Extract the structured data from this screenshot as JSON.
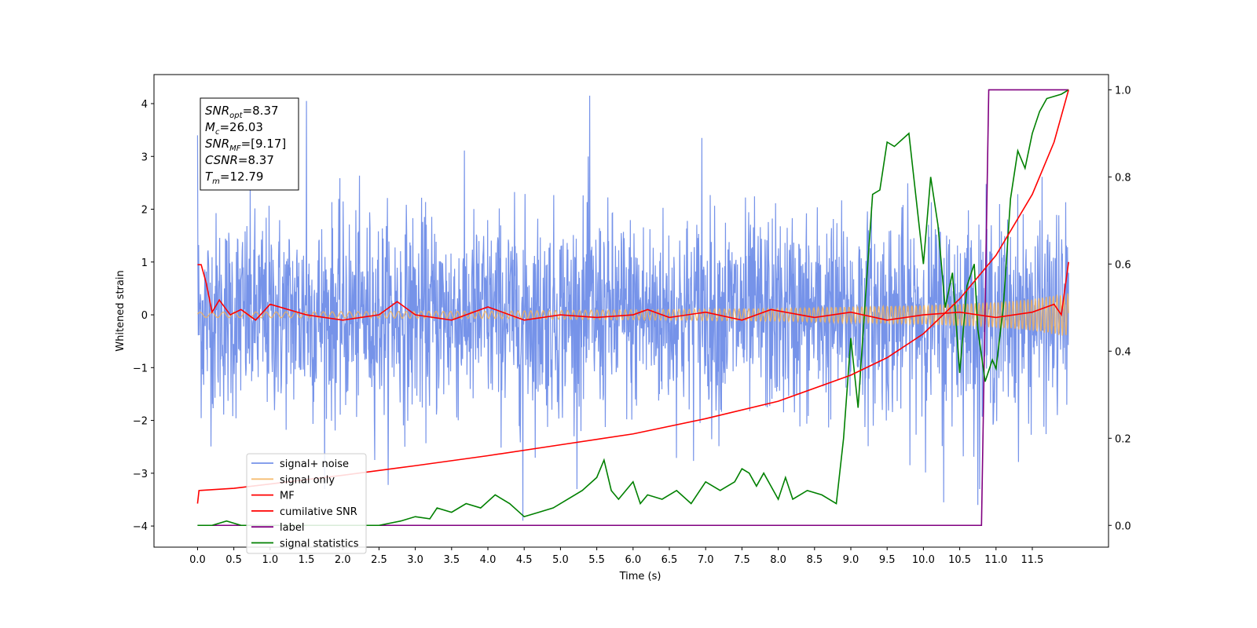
{
  "chart_data": {
    "type": "line",
    "title": "",
    "xlabel": "Time (s)",
    "ylabel": "Whitened strain",
    "xlim": [
      -0.6,
      12.55
    ],
    "ylim": [
      -4.4,
      4.55
    ],
    "y2lim": [
      -0.05,
      1.035
    ],
    "xticks": [
      "0.0",
      "0.5",
      "1.0",
      "1.5",
      "2.0",
      "2.5",
      "3.0",
      "3.5",
      "4.0",
      "4.5",
      "5.0",
      "5.5",
      "6.0",
      "6.5",
      "7.0",
      "7.5",
      "8.0",
      "8.5",
      "9.0",
      "9.5",
      "10.0",
      "10.5",
      "11.0",
      "11.5"
    ],
    "yticks": [
      "4",
      "3",
      "2",
      "1",
      "0",
      "−1",
      "−2",
      "−3",
      "−4"
    ],
    "y2ticks": [
      "1.0",
      "0.8",
      "0.6",
      "0.4",
      "0.2",
      "0.0"
    ],
    "grid": false,
    "legend_position": "lower-left",
    "annotation": {
      "lines": [
        {
          "base": "SNR",
          "sub": "opt",
          "rest": "=8.37"
        },
        {
          "base": "M",
          "sub": "c",
          "rest": "=26.03"
        },
        {
          "base": "SNR",
          "sub": "MF",
          "rest": "=[9.17]"
        },
        {
          "base": "CSNR",
          "sub": "",
          "rest": "=8.37"
        },
        {
          "base": "T",
          "sub": "m",
          "rest": "=12.79"
        }
      ]
    },
    "series": [
      {
        "name": "signal+ noise",
        "color": "#4169e1",
        "axis": "left",
        "style": "noise band, mostly within ±2.5 with spikes to ±4.2",
        "peaks": [
          [
            0.0,
            3.4
          ],
          [
            1.5,
            4.05
          ],
          [
            4.48,
            -3.9
          ],
          [
            5.4,
            4.15
          ],
          [
            6.95,
            3.35
          ],
          [
            10.28,
            -3.55
          ],
          [
            10.75,
            -3.6
          ]
        ]
      },
      {
        "name": "signal only",
        "color": "#f5b35a",
        "axis": "left",
        "style": "chirp oscillation",
        "envelope": [
          [
            0.0,
            0.05
          ],
          [
            4.0,
            0.07
          ],
          [
            8.0,
            0.12
          ],
          [
            10.0,
            0.18
          ],
          [
            11.0,
            0.24
          ],
          [
            11.5,
            0.3
          ],
          [
            12.0,
            0.42
          ]
        ]
      },
      {
        "name": "MF",
        "color": "#ff0000",
        "axis": "left",
        "x": [
          0.0,
          0.05,
          0.12,
          0.2,
          0.3,
          0.45,
          0.6,
          0.8,
          1.0,
          1.5,
          2.0,
          2.5,
          2.75,
          3.0,
          3.5,
          4.0,
          4.5,
          5.0,
          5.5,
          6.0,
          6.2,
          6.5,
          7.0,
          7.5,
          7.9,
          8.5,
          9.0,
          9.5,
          10.0,
          10.5,
          11.0,
          11.5,
          11.8,
          11.9,
          12.0
        ],
        "y": [
          0.95,
          0.95,
          0.6,
          0.05,
          0.28,
          0.0,
          0.1,
          -0.1,
          0.2,
          0.0,
          -0.1,
          0.0,
          0.25,
          0.0,
          -0.1,
          0.15,
          -0.1,
          0.0,
          -0.05,
          0.0,
          0.1,
          -0.05,
          0.05,
          -0.1,
          0.1,
          -0.05,
          0.05,
          -0.1,
          0.0,
          0.05,
          -0.05,
          0.05,
          0.2,
          0.0,
          1.0
        ]
      },
      {
        "name": "cumilative SNR",
        "color": "#ff0000",
        "axis": "right",
        "x": [
          0.0,
          0.02,
          0.5,
          1.0,
          2.0,
          3.0,
          4.0,
          5.0,
          6.0,
          7.0,
          8.0,
          9.0,
          9.5,
          10.0,
          10.5,
          11.0,
          11.5,
          11.8,
          12.0
        ],
        "y": [
          0.05,
          0.08,
          0.085,
          0.095,
          0.115,
          0.137,
          0.16,
          0.185,
          0.21,
          0.245,
          0.285,
          0.345,
          0.385,
          0.44,
          0.52,
          0.62,
          0.76,
          0.88,
          1.0
        ]
      },
      {
        "name": "label",
        "color": "#800080",
        "axis": "right",
        "x": [
          0.0,
          10.8,
          10.9,
          12.0
        ],
        "y": [
          0.0,
          0.0,
          1.0,
          1.0
        ]
      },
      {
        "name": "signal statistics",
        "color": "#008000",
        "axis": "right",
        "x": [
          0.0,
          0.2,
          0.4,
          0.6,
          1.0,
          1.5,
          2.0,
          2.5,
          2.8,
          3.0,
          3.2,
          3.3,
          3.5,
          3.7,
          3.9,
          4.1,
          4.3,
          4.5,
          4.7,
          4.9,
          5.1,
          5.3,
          5.5,
          5.6,
          5.7,
          5.8,
          6.0,
          6.1,
          6.2,
          6.4,
          6.6,
          6.8,
          7.0,
          7.2,
          7.4,
          7.5,
          7.6,
          7.7,
          7.8,
          8.0,
          8.1,
          8.2,
          8.4,
          8.6,
          8.8,
          8.9,
          9.0,
          9.1,
          9.2,
          9.3,
          9.4,
          9.5,
          9.6,
          9.8,
          10.0,
          10.1,
          10.2,
          10.3,
          10.4,
          10.5,
          10.6,
          10.7,
          10.75,
          10.85,
          10.95,
          11.0,
          11.1,
          11.2,
          11.3,
          11.4,
          11.5,
          11.6,
          11.7,
          11.9,
          12.0
        ],
        "y": [
          0.0,
          0.0,
          0.01,
          0.0,
          0.0,
          0.0,
          0.0,
          0.0,
          0.01,
          0.02,
          0.015,
          0.04,
          0.03,
          0.05,
          0.04,
          0.07,
          0.05,
          0.02,
          0.03,
          0.04,
          0.06,
          0.08,
          0.11,
          0.15,
          0.08,
          0.06,
          0.1,
          0.05,
          0.07,
          0.06,
          0.08,
          0.05,
          0.1,
          0.08,
          0.1,
          0.13,
          0.12,
          0.09,
          0.12,
          0.06,
          0.11,
          0.06,
          0.08,
          0.07,
          0.05,
          0.2,
          0.43,
          0.27,
          0.52,
          0.76,
          0.77,
          0.88,
          0.87,
          0.9,
          0.6,
          0.8,
          0.69,
          0.5,
          0.58,
          0.35,
          0.55,
          0.6,
          0.45,
          0.33,
          0.38,
          0.36,
          0.5,
          0.75,
          0.86,
          0.82,
          0.9,
          0.95,
          0.98,
          0.99,
          1.0
        ]
      }
    ]
  }
}
